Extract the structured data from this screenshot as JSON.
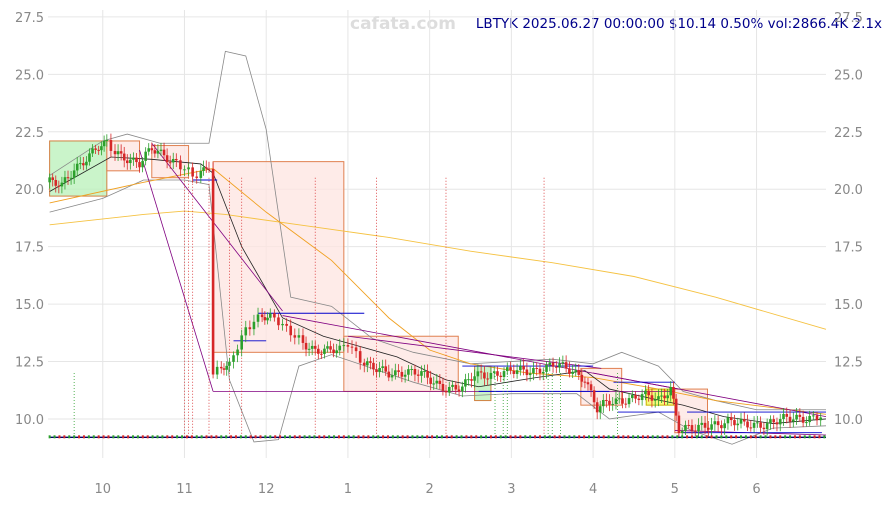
{
  "watermark": "cafata.com",
  "header": {
    "symbol": "LBTYK",
    "datetime": "2025.06.27 00:00:00",
    "price": "$10.14",
    "change": "0.50%",
    "volume": "vol:2866.4K",
    "ratio": "2.1x"
  },
  "colors": {
    "up": "#2ca02c",
    "down": "#d62728",
    "ma_long": "#f5c242",
    "ma_mid": "#f0a020",
    "ma_short": "#222222",
    "band": "#888888",
    "trend": "#800080",
    "level": "#0000cc",
    "box_up": "#b8f0b8",
    "box_down": "#fde4e0",
    "box_yellow": "#f6f650",
    "grid": "#e6e6e6"
  },
  "chart_data": {
    "type": "candlestick",
    "title": "LBTYK",
    "ylim": [
      8.3,
      27.8
    ],
    "y_ticks": [
      "10.0",
      "12.5",
      "15.0",
      "17.5",
      "20.0",
      "22.5",
      "25.0",
      "27.5"
    ],
    "x_ticks": [
      "10",
      "11",
      "12",
      "1",
      "2",
      "3",
      "4",
      "5",
      "6"
    ],
    "x_tick_months": [
      10,
      11,
      12,
      13,
      14,
      15,
      16,
      17,
      18
    ],
    "x_range_months": [
      9.33,
      18.85
    ],
    "grid": true,
    "close_series": [
      [
        9.35,
        20.3
      ],
      [
        9.5,
        20.1
      ],
      [
        9.65,
        20.9
      ],
      [
        9.8,
        21.4
      ],
      [
        9.95,
        21.8
      ],
      [
        10.05,
        21.9
      ],
      [
        10.15,
        21.6
      ],
      [
        10.3,
        21.4
      ],
      [
        10.45,
        21.1
      ],
      [
        10.6,
        21.7
      ],
      [
        10.75,
        21.5
      ],
      [
        10.9,
        21.2
      ],
      [
        11.0,
        20.9
      ],
      [
        11.1,
        20.5
      ],
      [
        11.2,
        20.6
      ],
      [
        11.3,
        21.1
      ],
      [
        11.35,
        12.0
      ],
      [
        11.45,
        12.4
      ],
      [
        11.55,
        12.3
      ],
      [
        11.65,
        13.1
      ],
      [
        11.75,
        13.8
      ],
      [
        11.85,
        14.3
      ],
      [
        11.95,
        14.6
      ],
      [
        12.05,
        14.5
      ],
      [
        12.15,
        14.2
      ],
      [
        12.25,
        13.8
      ],
      [
        12.35,
        13.6
      ],
      [
        12.45,
        13.4
      ],
      [
        12.6,
        13.0
      ],
      [
        12.75,
        12.9
      ],
      [
        12.9,
        13.0
      ],
      [
        13.0,
        13.4
      ],
      [
        13.1,
        12.9
      ],
      [
        13.2,
        12.4
      ],
      [
        13.35,
        12.1
      ],
      [
        13.5,
        12.0
      ],
      [
        13.7,
        12.1
      ],
      [
        13.9,
        11.9
      ],
      [
        14.05,
        11.6
      ],
      [
        14.2,
        11.4
      ],
      [
        14.4,
        11.3
      ],
      [
        14.55,
        11.9
      ],
      [
        14.75,
        12.0
      ],
      [
        14.95,
        12.0
      ],
      [
        15.15,
        12.1
      ],
      [
        15.35,
        12.2
      ],
      [
        15.55,
        12.3
      ],
      [
        15.75,
        12.1
      ],
      [
        15.9,
        11.8
      ],
      [
        16.05,
        10.4
      ],
      [
        16.2,
        10.7
      ],
      [
        16.4,
        10.9
      ],
      [
        16.6,
        11.0
      ],
      [
        16.8,
        10.8
      ],
      [
        16.95,
        11.4
      ],
      [
        17.05,
        9.6
      ],
      [
        17.25,
        9.5
      ],
      [
        17.45,
        9.8
      ],
      [
        17.65,
        9.9
      ],
      [
        17.85,
        9.7
      ],
      [
        18.05,
        9.8
      ],
      [
        18.25,
        9.9
      ],
      [
        18.45,
        10.0
      ],
      [
        18.65,
        10.1
      ],
      [
        18.83,
        10.14
      ]
    ],
    "ma_long": [
      [
        9.35,
        18.45
      ],
      [
        10.5,
        18.9
      ],
      [
        11.0,
        19.05
      ],
      [
        11.5,
        18.9
      ],
      [
        12.5,
        18.4
      ],
      [
        13.5,
        17.9
      ],
      [
        14.5,
        17.3
      ],
      [
        15.5,
        16.8
      ],
      [
        16.5,
        16.2
      ],
      [
        17.5,
        15.3
      ],
      [
        18.85,
        13.9
      ]
    ],
    "ma_mid": [
      [
        9.35,
        19.4
      ],
      [
        10.5,
        20.3
      ],
      [
        11.35,
        20.9
      ],
      [
        12.0,
        19.0
      ],
      [
        12.8,
        16.9
      ],
      [
        13.5,
        14.4
      ],
      [
        14.0,
        13.0
      ],
      [
        14.5,
        12.4
      ],
      [
        15.2,
        12.0
      ],
      [
        16.0,
        11.8
      ],
      [
        16.8,
        11.3
      ],
      [
        17.5,
        10.8
      ],
      [
        18.85,
        10.2
      ]
    ],
    "ma_short": [
      [
        9.35,
        19.9
      ],
      [
        10.1,
        21.4
      ],
      [
        10.6,
        21.3
      ],
      [
        11.2,
        21.1
      ],
      [
        11.35,
        20.7
      ],
      [
        11.7,
        17.5
      ],
      [
        12.2,
        14.4
      ],
      [
        12.7,
        13.6
      ],
      [
        13.1,
        13.2
      ],
      [
        13.6,
        12.7
      ],
      [
        14.2,
        11.7
      ],
      [
        14.6,
        11.4
      ],
      [
        15.3,
        11.8
      ],
      [
        15.9,
        12.1
      ],
      [
        16.2,
        11.3
      ],
      [
        16.7,
        10.9
      ],
      [
        17.1,
        10.6
      ],
      [
        17.6,
        10.1
      ],
      [
        18.2,
        9.8
      ],
      [
        18.85,
        10.0
      ]
    ],
    "bb_upper": [
      [
        9.35,
        20.6
      ],
      [
        10.0,
        22.1
      ],
      [
        10.3,
        22.4
      ],
      [
        10.7,
        22.0
      ],
      [
        11.3,
        22.0
      ],
      [
        11.5,
        26.0
      ],
      [
        11.75,
        25.8
      ],
      [
        12.0,
        22.6
      ],
      [
        12.3,
        15.3
      ],
      [
        12.8,
        14.9
      ],
      [
        13.3,
        13.5
      ],
      [
        13.8,
        12.9
      ],
      [
        14.5,
        12.4
      ],
      [
        15.5,
        12.6
      ],
      [
        16.0,
        12.4
      ],
      [
        16.35,
        12.9
      ],
      [
        16.8,
        12.3
      ],
      [
        17.1,
        11.2
      ],
      [
        17.5,
        10.8
      ],
      [
        18.0,
        10.4
      ],
      [
        18.85,
        10.4
      ]
    ],
    "bb_lower": [
      [
        9.35,
        19.0
      ],
      [
        10.0,
        19.6
      ],
      [
        10.5,
        20.4
      ],
      [
        11.0,
        20.4
      ],
      [
        11.3,
        20.2
      ],
      [
        11.55,
        11.7
      ],
      [
        11.85,
        9.0
      ],
      [
        12.15,
        9.1
      ],
      [
        12.4,
        12.3
      ],
      [
        12.8,
        12.8
      ],
      [
        13.3,
        12.2
      ],
      [
        13.8,
        11.6
      ],
      [
        14.4,
        11.0
      ],
      [
        15.0,
        11.1
      ],
      [
        15.8,
        11.1
      ],
      [
        16.2,
        10.0
      ],
      [
        16.8,
        10.3
      ],
      [
        17.2,
        9.5
      ],
      [
        17.7,
        8.9
      ],
      [
        18.2,
        9.6
      ],
      [
        18.85,
        9.7
      ]
    ],
    "boxes": [
      {
        "x0": 9.35,
        "x1": 10.05,
        "y0": 19.7,
        "y1": 22.1,
        "kind": "up"
      },
      {
        "x0": 10.05,
        "x1": 10.45,
        "y0": 20.8,
        "y1": 22.1,
        "kind": "down"
      },
      {
        "x0": 10.6,
        "x1": 11.05,
        "y0": 20.5,
        "y1": 21.9,
        "kind": "down"
      },
      {
        "x0": 11.35,
        "x1": 12.95,
        "y0": 12.9,
        "y1": 21.2,
        "kind": "down"
      },
      {
        "x0": 12.95,
        "x1": 14.35,
        "y0": 11.2,
        "y1": 13.6,
        "kind": "down"
      },
      {
        "x0": 14.55,
        "x1": 14.75,
        "y0": 10.8,
        "y1": 12.3,
        "kind": "up"
      },
      {
        "x0": 15.85,
        "x1": 16.35,
        "y0": 10.6,
        "y1": 12.2,
        "kind": "down"
      },
      {
        "x0": 16.65,
        "x1": 17.0,
        "y0": 10.6,
        "y1": 11.3,
        "kind": "yellow"
      },
      {
        "x0": 17.0,
        "x1": 17.4,
        "y0": 9.4,
        "y1": 11.3,
        "kind": "down"
      }
    ],
    "trendlines": [
      [
        [
          10.45,
          21.7
        ],
        [
          11.35,
          11.2
        ]
      ],
      [
        [
          10.6,
          22.0
        ],
        [
          12.2,
          14.7
        ]
      ],
      [
        [
          11.35,
          11.2
        ],
        [
          17.0,
          11.2
        ]
      ],
      [
        [
          12.2,
          14.5
        ],
        [
          17.05,
          11.3
        ]
      ],
      [
        [
          13.0,
          13.6
        ],
        [
          16.1,
          12.2
        ]
      ],
      [
        [
          16.0,
          12.0
        ],
        [
          18.85,
          10.1
        ]
      ],
      [
        [
          17.0,
          9.5
        ],
        [
          18.85,
          9.3
        ]
      ]
    ],
    "levels": [
      {
        "x0": 11.1,
        "x1": 11.4,
        "y": 20.4
      },
      {
        "x0": 11.9,
        "x1": 13.2,
        "y": 14.6
      },
      {
        "x0": 11.6,
        "x1": 12.0,
        "y": 13.4
      },
      {
        "x0": 14.6,
        "x1": 16.2,
        "y": 11.2
      },
      {
        "x0": 14.4,
        "x1": 16.0,
        "y": 12.3
      },
      {
        "x0": 16.25,
        "x1": 17.0,
        "y": 11.6
      },
      {
        "x0": 16.3,
        "x1": 17.0,
        "y": 10.3
      },
      {
        "x0": 17.15,
        "x1": 18.85,
        "y": 10.3
      },
      {
        "x0": 17.1,
        "x1": 18.8,
        "y": 9.4
      }
    ],
    "vlines_red": [
      11.0,
      11.05,
      11.1,
      11.3,
      11.55,
      11.7,
      12.6,
      13.35,
      14.2,
      15.4
    ],
    "vlines_green": [
      9.65,
      14.8,
      14.9,
      14.95,
      15.45,
      15.5,
      15.6,
      16.3
    ],
    "volume_baseline": 9.2
  }
}
